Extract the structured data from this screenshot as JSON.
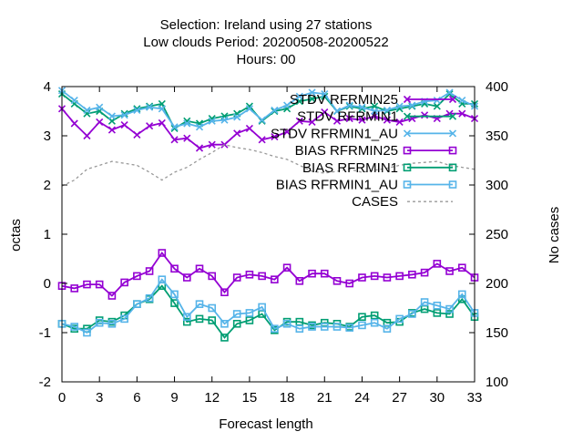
{
  "chart_data": {
    "type": "line",
    "title_lines": [
      "Selection: Ireland using    27 stations",
      "Low clouds   Period: 20200508-20200522",
      "Hours:  00"
    ],
    "xlabel": "Forecast length",
    "ylabel": "octas",
    "y2label": "No cases",
    "xlim": [
      0,
      33
    ],
    "ylim": [
      -2,
      4
    ],
    "y2lim": [
      100,
      400
    ],
    "xticks": [
      0,
      3,
      6,
      9,
      12,
      15,
      18,
      21,
      24,
      27,
      30,
      33
    ],
    "yticks": [
      -2,
      -1,
      0,
      1,
      2,
      3,
      4
    ],
    "y2ticks": [
      100,
      150,
      200,
      250,
      300,
      350,
      400
    ],
    "legend_position": "top-right",
    "grid": false,
    "x": [
      0,
      1,
      2,
      3,
      4,
      5,
      6,
      7,
      8,
      9,
      10,
      11,
      12,
      13,
      14,
      15,
      16,
      17,
      18,
      19,
      20,
      21,
      22,
      23,
      24,
      25,
      26,
      27,
      28,
      29,
      30,
      31,
      32,
      33
    ],
    "series": [
      {
        "name": "STDV RFRMIN25",
        "axis": "y1",
        "color": "#9400d3",
        "marker": "x",
        "dash": false,
        "values": [
          3.55,
          3.25,
          3.0,
          3.28,
          3.12,
          3.22,
          3.02,
          3.2,
          3.26,
          2.92,
          2.95,
          2.75,
          2.82,
          2.82,
          3.05,
          3.15,
          2.92,
          2.98,
          3.08,
          3.3,
          3.28,
          3.48,
          3.3,
          3.35,
          3.32,
          3.4,
          3.32,
          3.28,
          3.35,
          3.42,
          3.35,
          3.45,
          3.45,
          3.35
        ]
      },
      {
        "name": "STDV RFRMIN1",
        "axis": "y1",
        "color": "#009e73",
        "marker": "x",
        "dash": false,
        "values": [
          3.85,
          3.65,
          3.45,
          3.5,
          3.3,
          3.45,
          3.55,
          3.6,
          3.65,
          3.15,
          3.3,
          3.25,
          3.35,
          3.4,
          3.45,
          3.6,
          3.3,
          3.5,
          3.55,
          3.7,
          3.75,
          3.8,
          3.5,
          3.6,
          3.55,
          3.6,
          3.5,
          3.55,
          3.6,
          3.65,
          3.6,
          3.85,
          3.65,
          3.65
        ]
      },
      {
        "name": "STDV RFRMIN1_AU",
        "axis": "y1",
        "color": "#56b4e9",
        "marker": "x",
        "dash": false,
        "values": [
          3.92,
          3.72,
          3.52,
          3.58,
          3.4,
          3.42,
          3.52,
          3.58,
          3.55,
          3.18,
          3.25,
          3.18,
          3.3,
          3.32,
          3.38,
          3.55,
          3.32,
          3.52,
          3.62,
          3.8,
          3.88,
          3.85,
          3.5,
          3.62,
          3.58,
          3.5,
          3.52,
          3.6,
          3.62,
          3.7,
          3.72,
          3.88,
          3.72,
          3.6
        ]
      },
      {
        "name": "BIAS RFRMIN25",
        "axis": "y1",
        "color": "#9400d3",
        "marker": "square",
        "dash": false,
        "values": [
          -0.05,
          -0.1,
          -0.02,
          -0.02,
          -0.25,
          0.02,
          0.15,
          0.25,
          0.62,
          0.3,
          0.12,
          0.3,
          0.15,
          -0.18,
          0.12,
          0.18,
          0.15,
          0.08,
          0.32,
          0.05,
          0.2,
          0.2,
          0.05,
          0.0,
          0.12,
          0.15,
          0.12,
          0.15,
          0.18,
          0.22,
          0.4,
          0.25,
          0.32,
          0.12
        ]
      },
      {
        "name": "BIAS RFRMIN1",
        "axis": "y1",
        "color": "#009e73",
        "marker": "square",
        "dash": false,
        "values": [
          -0.82,
          -0.92,
          -0.92,
          -0.75,
          -0.78,
          -0.65,
          -0.42,
          -0.32,
          -0.05,
          -0.4,
          -0.78,
          -0.72,
          -0.75,
          -1.1,
          -0.82,
          -0.75,
          -0.62,
          -0.95,
          -0.78,
          -0.78,
          -0.85,
          -0.8,
          -0.82,
          -0.88,
          -0.68,
          -0.65,
          -0.8,
          -0.78,
          -0.6,
          -0.52,
          -0.6,
          -0.62,
          -0.32,
          -0.68
        ]
      },
      {
        "name": "BIAS RFRMIN1_AU",
        "axis": "y1",
        "color": "#56b4e9",
        "marker": "square",
        "dash": false,
        "values": [
          -0.82,
          -0.88,
          -1.0,
          -0.8,
          -0.82,
          -0.72,
          -0.42,
          -0.3,
          0.08,
          -0.22,
          -0.68,
          -0.42,
          -0.5,
          -0.82,
          -0.62,
          -0.6,
          -0.48,
          -0.92,
          -0.82,
          -0.92,
          -0.88,
          -0.88,
          -0.88,
          -0.9,
          -0.85,
          -0.8,
          -0.92,
          -0.72,
          -0.62,
          -0.38,
          -0.45,
          -0.52,
          -0.22,
          -0.6
        ]
      },
      {
        "name": "CASES",
        "axis": "y2",
        "color": "#999999",
        "marker": "none",
        "dash": true,
        "values": [
          299,
          305,
          316,
          320,
          324,
          322,
          320,
          313,
          305,
          313,
          318,
          326,
          333,
          341,
          338,
          336,
          333,
          329,
          326,
          320,
          314,
          312,
          314,
          316,
          313,
          315,
          317,
          320,
          322,
          323,
          324,
          320,
          318,
          316
        ]
      }
    ]
  }
}
